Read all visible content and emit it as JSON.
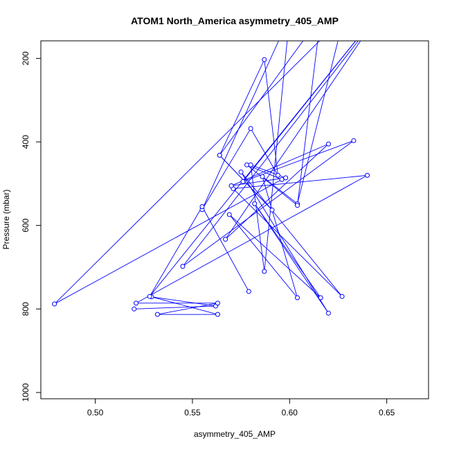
{
  "chart_data": {
    "type": "line",
    "title": "ATOM1 North_America asymmetry_405_AMP",
    "xlabel": "asymmetry_405_AMP",
    "ylabel": "Pressure (mbar)",
    "xlim": [
      0.472,
      0.6715
    ],
    "ylim": [
      1015,
      158
    ],
    "y_reversed": true,
    "grid": false,
    "legend": "none",
    "x_ticks": [
      0.5,
      0.55,
      0.6,
      0.65
    ],
    "x_tick_labels": [
      "0.50",
      "0.55",
      "0.60",
      "0.65"
    ],
    "y_ticks": [
      200,
      400,
      600,
      800,
      1000
    ],
    "y_tick_labels": [
      "200",
      "400",
      "600",
      "800",
      "1000"
    ],
    "series_color": "#0000ff",
    "point_style": "open-circle",
    "x": [
      0.52,
      0.562,
      0.529,
      0.563,
      0.532,
      0.563,
      0.521,
      0.64,
      0.571,
      0.627,
      0.575,
      0.62,
      0.582,
      0.616,
      0.569,
      0.604,
      0.586,
      0.604,
      0.628,
      0.479,
      0.596,
      0.578,
      0.604,
      0.616,
      0.564,
      0.591,
      0.564,
      0.587,
      0.594,
      0.58,
      0.555,
      0.6,
      0.587,
      0.58,
      0.598,
      0.57,
      0.62,
      0.567,
      0.645,
      0.545,
      0.633,
      0.576,
      0.644,
      0.528,
      0.555,
      0.579
    ],
    "y": [
      800,
      793,
      771,
      813,
      813,
      786,
      786,
      480,
      512,
      770,
      472,
      810,
      548,
      773,
      574,
      773,
      483,
      548,
      100,
      788,
      490,
      455,
      552,
      100,
      432,
      563,
      432,
      203,
      480,
      368,
      562,
      100,
      710,
      455,
      486,
      505,
      405,
      633,
      100,
      698,
      397,
      495,
      100,
      770,
      555,
      758
    ]
  }
}
